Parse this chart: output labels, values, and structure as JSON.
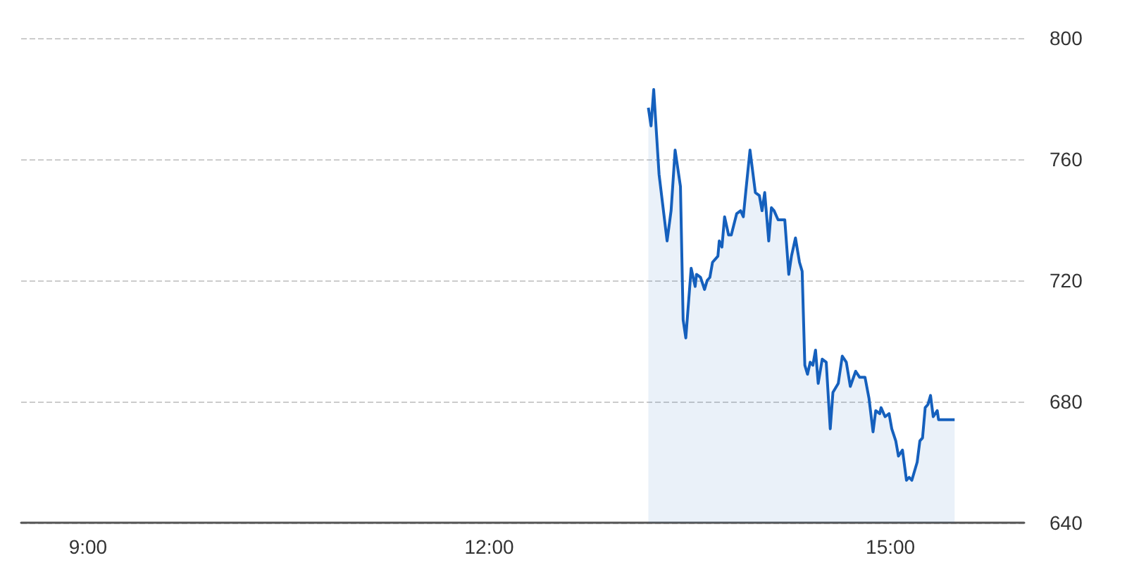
{
  "chart_data": {
    "type": "area",
    "xlim": [
      8.5,
      16
    ],
    "xticks": [
      {
        "value": 9,
        "label": "9:00"
      },
      {
        "value": 12,
        "label": "12:00"
      },
      {
        "value": 15,
        "label": "15:00"
      }
    ],
    "ylim": [
      640,
      800
    ],
    "yticks": [
      640,
      680,
      720,
      760,
      800
    ],
    "grid": "y",
    "x": [
      13.19,
      13.21,
      13.23,
      13.25,
      13.27,
      13.33,
      13.36,
      13.39,
      13.43,
      13.45,
      13.47,
      13.51,
      13.54,
      13.55,
      13.58,
      13.61,
      13.63,
      13.65,
      13.67,
      13.71,
      13.72,
      13.74,
      13.76,
      13.79,
      13.81,
      13.85,
      13.88,
      13.9,
      13.92,
      13.95,
      13.99,
      14.02,
      14.04,
      14.06,
      14.09,
      14.11,
      14.13,
      14.16,
      14.21,
      14.24,
      14.26,
      14.29,
      14.32,
      14.34,
      14.36,
      14.38,
      14.4,
      14.42,
      14.44,
      14.46,
      14.49,
      14.52,
      14.55,
      14.57,
      14.61,
      14.64,
      14.67,
      14.7,
      14.74,
      14.77,
      14.81,
      14.84,
      14.87,
      14.89,
      14.92,
      14.93,
      14.96,
      14.99,
      15.01,
      15.04,
      15.06,
      15.09,
      15.12,
      15.14,
      15.16,
      15.2,
      15.22,
      15.24,
      15.26,
      15.28,
      15.3,
      15.32,
      15.35,
      15.36,
      15.48
    ],
    "series": [
      {
        "color": "#1560bd",
        "values": [
          777,
          771,
          783,
          769,
          755,
          733,
          743,
          763,
          751,
          707,
          701,
          724,
          718,
          722,
          721,
          717,
          720,
          721,
          726,
          728,
          733,
          731,
          741,
          735,
          735,
          742,
          743,
          741,
          750,
          763,
          749,
          748,
          743,
          749,
          733,
          744,
          743,
          740,
          740,
          722,
          728,
          734,
          726,
          723,
          692,
          689,
          693,
          692,
          697,
          686,
          694,
          693,
          671,
          683,
          686,
          695,
          693,
          685,
          690,
          688,
          688,
          681,
          670,
          677,
          676,
          678,
          675,
          676,
          671,
          667,
          662,
          664,
          654,
          655,
          654,
          660,
          667,
          668,
          678,
          679,
          682,
          675,
          677,
          674,
          674
        ]
      }
    ]
  }
}
